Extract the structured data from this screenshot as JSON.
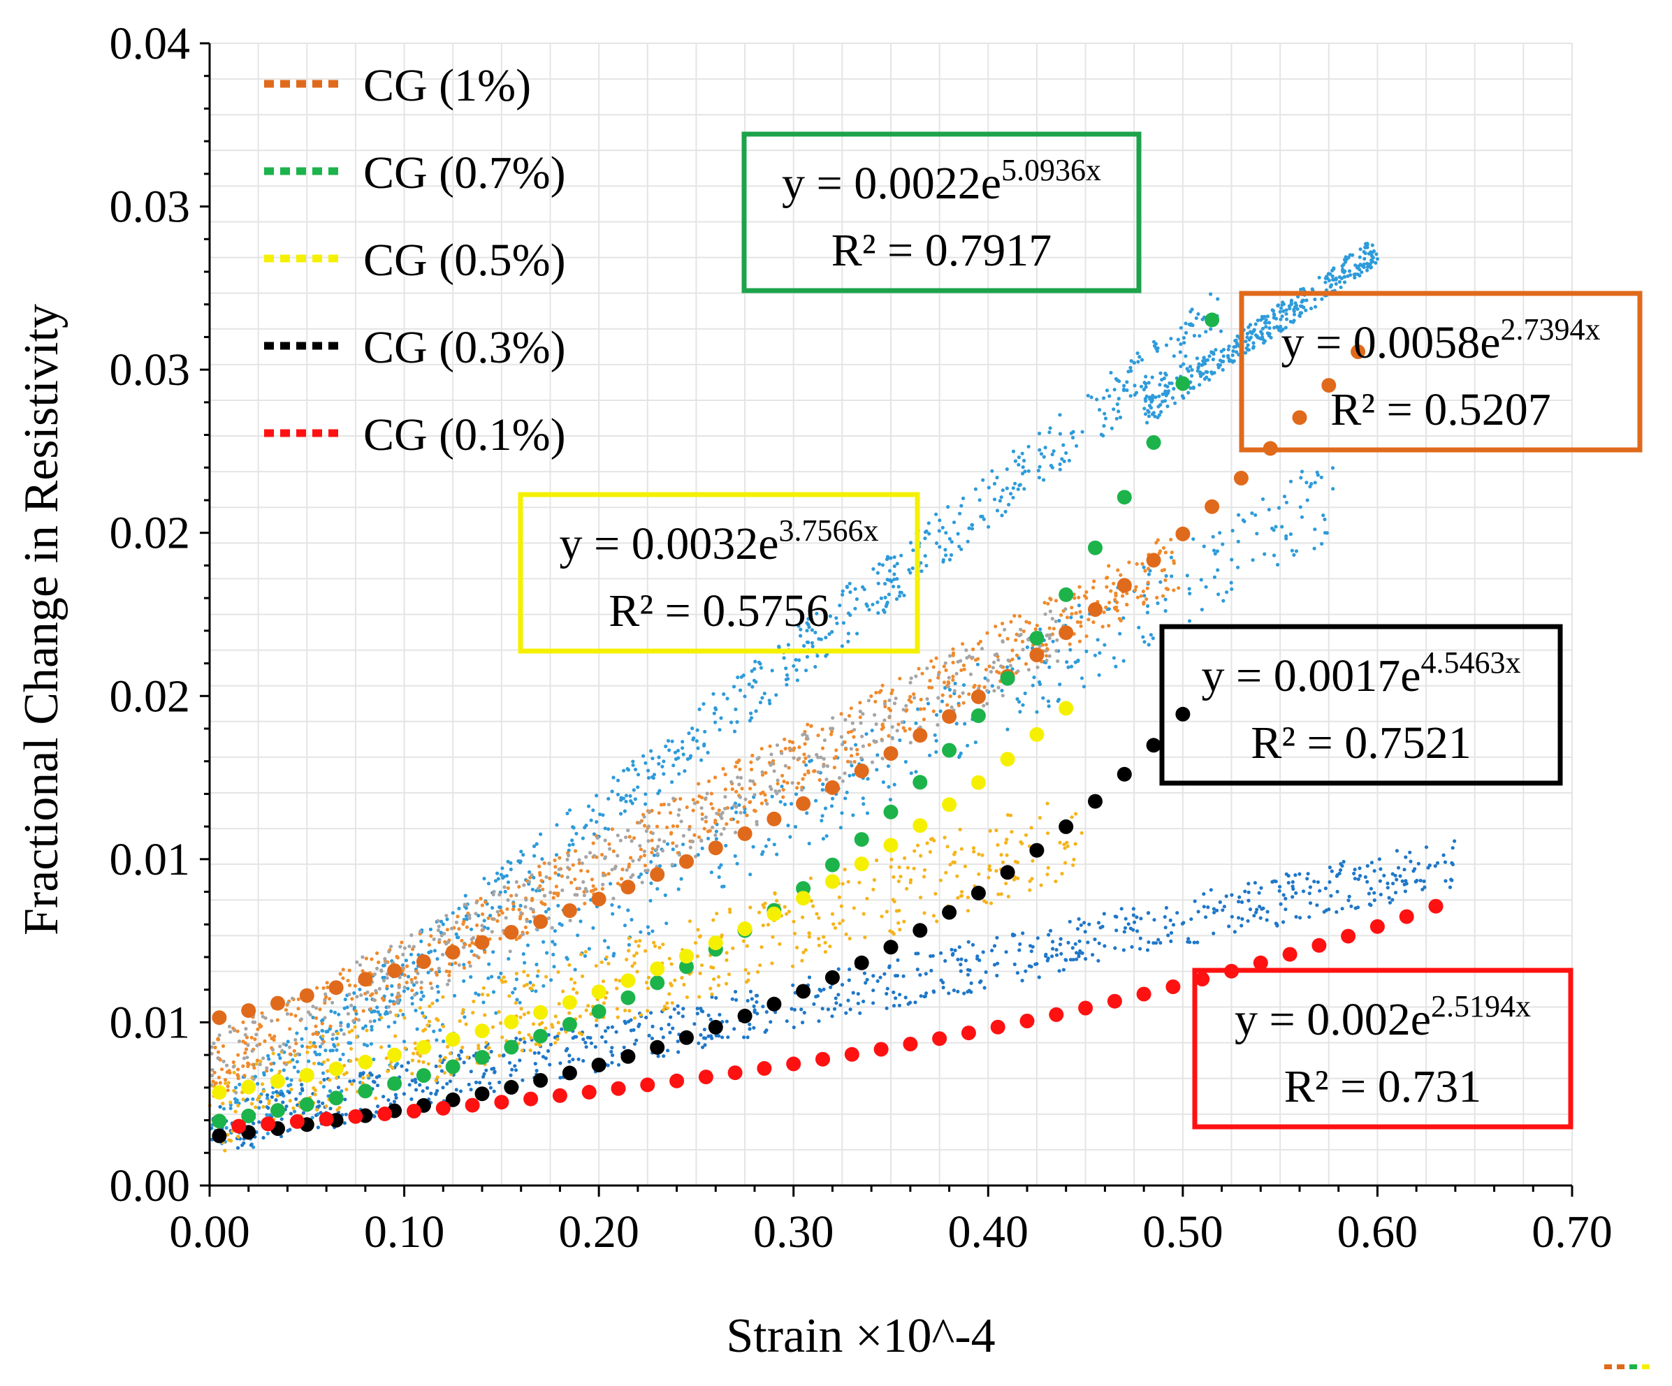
{
  "chart_data": {
    "type": "scatter",
    "title": "",
    "xlabel": "Strain ×10^-4",
    "ylabel": "Fractional Change in Resistivity",
    "xlim": [
      0,
      0.7
    ],
    "ylim": [
      0,
      0.04
    ],
    "x_ticks": [
      "0.00",
      "0.10",
      "0.20",
      "0.30",
      "0.40",
      "0.50",
      "0.60",
      "0.70"
    ],
    "y_ticks": [
      "0.00",
      "0.01",
      "0.01",
      "0.02",
      "0.02",
      "0.03",
      "0.03",
      "0.04"
    ],
    "grid": true,
    "legend_position": "top-left",
    "series": [
      {
        "name": "CG (1%)",
        "color": "#E06A1B",
        "fit": {
          "a": 0.0058,
          "b": 2.7394,
          "x_end": 0.595
        },
        "trend_x": [
          0.005,
          0.02,
          0.035,
          0.05,
          0.065,
          0.08,
          0.095,
          0.11,
          0.125,
          0.14,
          0.155,
          0.17,
          0.185,
          0.2,
          0.215,
          0.23,
          0.245,
          0.26,
          0.275,
          0.29,
          0.305,
          0.32,
          0.335,
          0.35,
          0.365,
          0.38,
          0.395,
          0.41,
          0.425,
          0.44,
          0.455,
          0.47,
          0.485,
          0.5,
          0.515,
          0.53,
          0.545,
          0.56,
          0.575,
          0.59
        ]
      },
      {
        "name": "CG (0.7%)",
        "color": "#1DB34B",
        "fit": {
          "a": 0.0022,
          "b": 5.0936,
          "x_end": 0.52
        },
        "trend_x": [
          0.005,
          0.02,
          0.035,
          0.05,
          0.065,
          0.08,
          0.095,
          0.11,
          0.125,
          0.14,
          0.155,
          0.17,
          0.185,
          0.2,
          0.215,
          0.23,
          0.245,
          0.26,
          0.275,
          0.29,
          0.305,
          0.32,
          0.335,
          0.35,
          0.365,
          0.38,
          0.395,
          0.41,
          0.425,
          0.44,
          0.455,
          0.47,
          0.485,
          0.5,
          0.515
        ]
      },
      {
        "name": "CG (0.5%)",
        "color": "#F5F000",
        "fit": {
          "a": 0.0032,
          "b": 3.7566,
          "x_end": 0.44
        },
        "trend_x": [
          0.005,
          0.02,
          0.035,
          0.05,
          0.065,
          0.08,
          0.095,
          0.11,
          0.125,
          0.14,
          0.155,
          0.17,
          0.185,
          0.2,
          0.215,
          0.23,
          0.245,
          0.26,
          0.275,
          0.29,
          0.305,
          0.32,
          0.335,
          0.35,
          0.365,
          0.38,
          0.395,
          0.41,
          0.425,
          0.44
        ]
      },
      {
        "name": "CG (0.3%)",
        "color": "#000000",
        "fit": {
          "a": 0.0017,
          "b": 4.5463,
          "x_end": 0.5
        },
        "trend_x": [
          0.005,
          0.02,
          0.035,
          0.05,
          0.065,
          0.08,
          0.095,
          0.11,
          0.125,
          0.14,
          0.155,
          0.17,
          0.185,
          0.2,
          0.215,
          0.23,
          0.245,
          0.26,
          0.275,
          0.29,
          0.305,
          0.32,
          0.335,
          0.35,
          0.365,
          0.38,
          0.395,
          0.41,
          0.425,
          0.44,
          0.455,
          0.47,
          0.485,
          0.5
        ]
      },
      {
        "name": "CG (0.1%)",
        "color": "#FF1111",
        "fit": {
          "a": 0.002,
          "b": 2.5194,
          "x_end": 0.63
        },
        "trend_x": [
          0.015,
          0.03,
          0.045,
          0.06,
          0.075,
          0.09,
          0.105,
          0.12,
          0.135,
          0.15,
          0.165,
          0.18,
          0.195,
          0.21,
          0.225,
          0.24,
          0.255,
          0.27,
          0.285,
          0.3,
          0.315,
          0.33,
          0.345,
          0.36,
          0.375,
          0.39,
          0.405,
          0.42,
          0.435,
          0.45,
          0.465,
          0.48,
          0.495,
          0.51,
          0.525,
          0.54,
          0.555,
          0.57,
          0.585,
          0.6,
          0.615,
          0.63
        ]
      }
    ],
    "annotations": [
      {
        "series": "CG (0.7%)",
        "base": "y = 0.0022e",
        "exponent": "5.0936x",
        "r2": "R² = 0.7917",
        "box_color": "#1DA34B"
      },
      {
        "series": "CG (1%)",
        "base": "y = 0.0058e",
        "exponent": "2.7394x",
        "r2": "R² = 0.5207",
        "box_color": "#E06A1B"
      },
      {
        "series": "CG (0.5%)",
        "base": "y = 0.0032e",
        "exponent": "3.7566x",
        "r2": "R² = 0.5756",
        "box_color": "#F5F000"
      },
      {
        "series": "CG (0.3%)",
        "base": "y = 0.0017e",
        "exponent": "4.5463x",
        "r2": "R² = 0.7521",
        "box_color": "#000000"
      },
      {
        "series": "CG (0.1%)",
        "base": "y = 0.002e",
        "exponent": "2.5194x",
        "r2": "R² = 0.731",
        "box_color": "#FF1111"
      }
    ],
    "raw_data_colors": [
      "#2E9BDA",
      "#1F77C8",
      "#F08A2C",
      "#F5B41A",
      "#A5A5A5"
    ]
  }
}
